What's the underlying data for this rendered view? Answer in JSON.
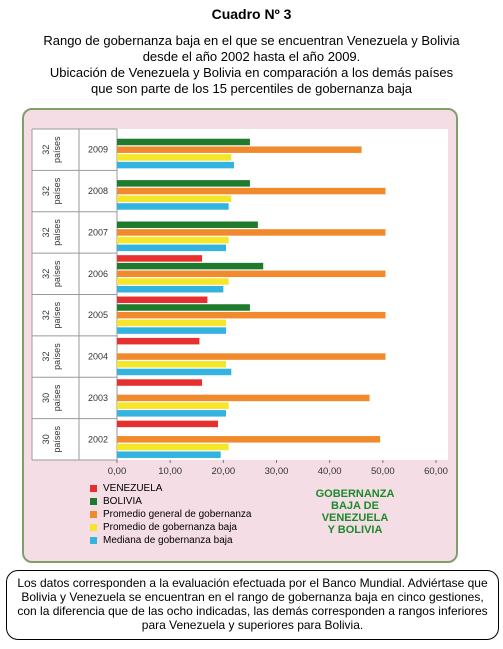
{
  "header": {
    "title": "Cuadro Nº 3",
    "subtitle_lines": [
      "Rango de gobernanza baja en el que se encuentran Venezuela y Bolivia",
      "desde el año 2002 hasta el año 2009.",
      "Ubicación de Venezuela y Bolivia en comparación a los demás países",
      "que son parte de los 15 percentiles de gobernanza baja"
    ]
  },
  "chart_data": {
    "type": "bar",
    "orientation": "horizontal",
    "categories": [
      "2009",
      "2008",
      "2007",
      "2006",
      "2005",
      "2004",
      "2003",
      "2002"
    ],
    "group_labels": [
      "32\npaíses",
      "32\npaíses",
      "32\npaíses",
      "32\npaíses",
      "32\npaíses",
      "32\npaíses",
      "30\npaíses",
      "30\npaíses"
    ],
    "series": [
      {
        "name": "VENEZUELA",
        "color": "#e63030",
        "values": [
          null,
          null,
          null,
          16.0,
          17.0,
          15.5,
          16.0,
          19.0
        ]
      },
      {
        "name": "BOLIVIA",
        "color": "#1e7a2c",
        "values": [
          25.0,
          25.0,
          26.5,
          27.5,
          25.0,
          null,
          null,
          null
        ]
      },
      {
        "name": "Promedio general de gobernanza",
        "color": "#f08a2c",
        "values": [
          46.0,
          50.5,
          50.5,
          50.5,
          50.5,
          50.5,
          47.5,
          49.5
        ]
      },
      {
        "name": "Promedio de gobernanza baja",
        "color": "#f5e62a",
        "values": [
          21.5,
          21.5,
          21.0,
          21.0,
          20.5,
          20.5,
          21.0,
          21.0
        ]
      },
      {
        "name": "Mediana de gobernanza baja",
        "color": "#33b3e0",
        "values": [
          22.0,
          21.0,
          20.5,
          20.0,
          20.5,
          21.5,
          20.5,
          19.5
        ]
      }
    ],
    "xlim": [
      0,
      60
    ],
    "xticks": [
      "0,00",
      "10,00",
      "20,00",
      "30,00",
      "40,00",
      "50,00",
      "60,00"
    ],
    "grid": false,
    "legend_position": "bottom-left"
  },
  "legend_side_label": [
    "GOBERNANZA",
    "BAJA DE",
    "VENEZUELA",
    "Y BOLIVIA"
  ],
  "note": "Los datos corresponden a la evaluación efectuada por el Banco Mundial. Adviértase que Bolivia y Venezuela se encuentran en el rango de gobernanza baja en cinco gestiones, con la diferencia que de las ocho indicadas, las demás corresponden a rangos inferiores para Venezuela y superiores para Bolivia."
}
